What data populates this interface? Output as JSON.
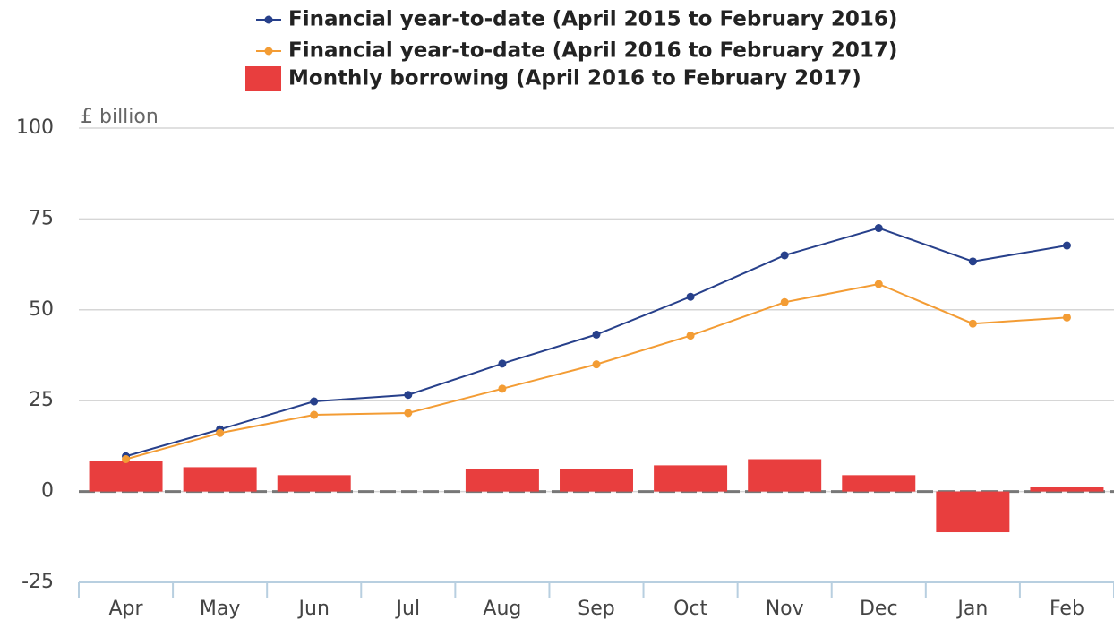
{
  "chart_data": {
    "type": "bar-line",
    "y_axis_label": "£ billion",
    "categories": [
      "Apr",
      "May",
      "Jun",
      "Jul",
      "Aug",
      "Sep",
      "Oct",
      "Nov",
      "Dec",
      "Jan",
      "Feb"
    ],
    "series": [
      {
        "name": "Financial year-to-date (April 2015 to February 2016)",
        "type": "line",
        "color": "#27408b",
        "values": [
          9.7,
          17.1,
          24.8,
          26.6,
          35.2,
          43.2,
          53.6,
          65.0,
          72.5,
          63.3,
          67.7
        ]
      },
      {
        "name": "Financial year-to-date (April 2016 to February 2017)",
        "type": "line",
        "color": "#f39c34",
        "values": [
          8.9,
          16.1,
          21.1,
          21.6,
          28.3,
          35.0,
          42.9,
          52.1,
          57.1,
          46.2,
          47.9
        ]
      },
      {
        "name": "Monthly borrowing (April 2016 to February 2017)",
        "type": "bar",
        "color": "#e83e3e",
        "values": [
          8.4,
          6.7,
          4.5,
          0,
          6.2,
          6.2,
          7.2,
          8.9,
          4.5,
          -11.2,
          1.2
        ]
      }
    ],
    "ylim": [
      -25,
      100
    ],
    "yticks": [
      -25,
      0,
      25,
      50,
      75,
      100
    ],
    "grid": true
  }
}
